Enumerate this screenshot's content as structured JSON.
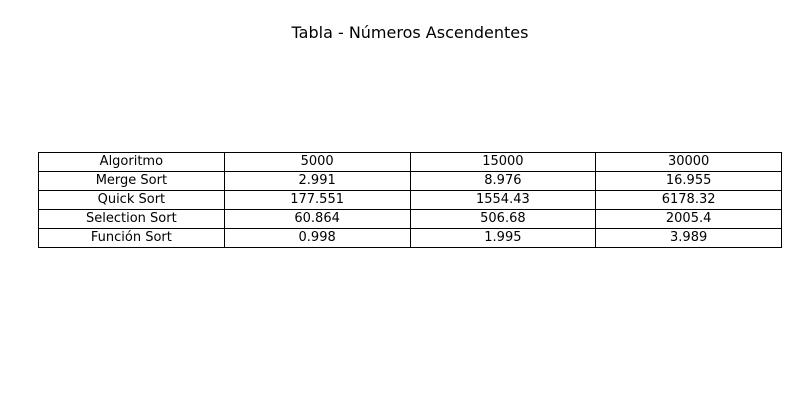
{
  "title": "Tabla - Números Ascendentes",
  "chart_data": {
    "type": "table",
    "title": "Tabla - Números Ascendentes",
    "columns": [
      "Algoritmo",
      "5000",
      "15000",
      "30000"
    ],
    "rows": [
      [
        "Merge Sort",
        "2.991",
        "8.976",
        "16.955"
      ],
      [
        "Quick Sort",
        "177.551",
        "1554.43",
        "6178.32"
      ],
      [
        "Selection Sort",
        "60.864",
        "506.68",
        "2005.4"
      ],
      [
        "Función Sort",
        "0.998",
        "1.995",
        "3.989"
      ]
    ]
  }
}
